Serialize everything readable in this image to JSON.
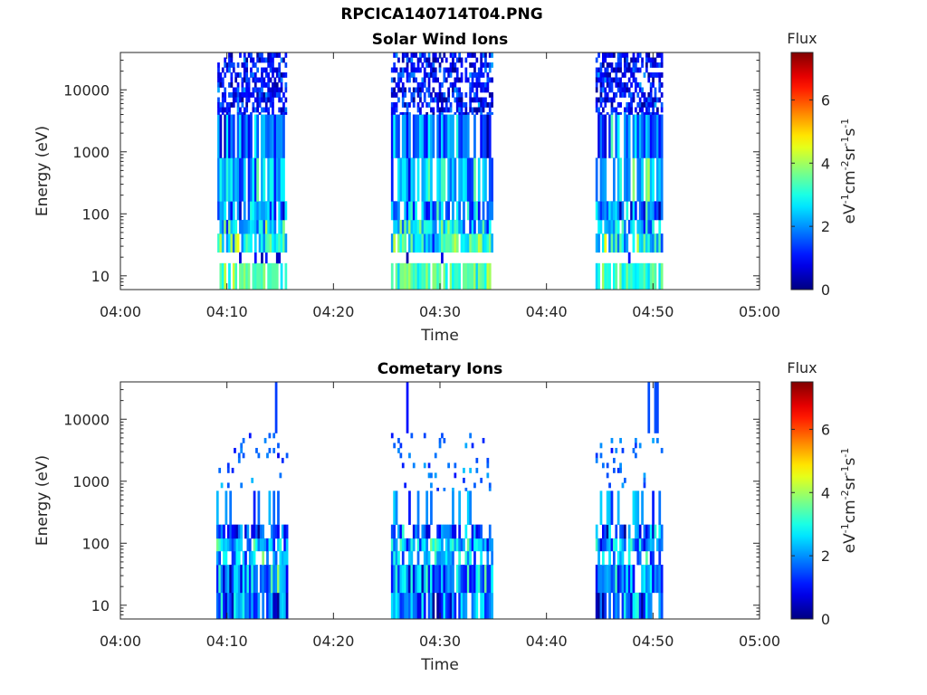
{
  "figure_title": "RPCICA140714T04.PNG",
  "colors": {
    "colormap": "jet",
    "axis": "#262626",
    "background": "#ffffff"
  },
  "chart_data": [
    {
      "type": "heatmap",
      "title": "Solar Wind Ions",
      "xlabel": "Time",
      "ylabel": "Energy (eV)",
      "xticks": [
        "04:00",
        "04:10",
        "04:20",
        "04:30",
        "04:40",
        "04:50",
        "05:00"
      ],
      "xlim_minutes": [
        0,
        60
      ],
      "yticks": [
        "10",
        "100",
        "1000",
        "10000"
      ],
      "ylim_ev": [
        6,
        40000
      ],
      "yscale": "log",
      "colorbar": {
        "title": "Flux",
        "label": "eV-1cm-2sr-1s-1",
        "label_parts": [
          [
            "eV",
            ""
          ],
          [
            "-1",
            "sup"
          ],
          [
            "cm",
            ""
          ],
          [
            "-2",
            "sup"
          ],
          [
            "sr",
            ""
          ],
          [
            "-1",
            "sup"
          ],
          [
            "s",
            ""
          ],
          [
            "-1",
            "sup"
          ]
        ],
        "ticks": [
          "0",
          "2",
          "4",
          "6"
        ],
        "range": [
          0,
          7.5
        ]
      },
      "segments": [
        {
          "start_min": 9.1,
          "end_min": 15.5
        },
        {
          "start_min": 25.4,
          "end_min": 34.9
        },
        {
          "start_min": 44.6,
          "end_min": 50.8
        }
      ],
      "bands": [
        {
          "emin_ev": 6,
          "emax_ev": 16,
          "mean_flux": 3.3,
          "spread": 0.6,
          "fill": 0.8
        },
        {
          "emin_ev": 16,
          "emax_ev": 24,
          "mean_flux": 0.8,
          "spread": 0.5,
          "fill": 0.05
        },
        {
          "emin_ev": 24,
          "emax_ev": 48,
          "mean_flux": 2.8,
          "spread": 1.2,
          "fill": 0.88
        },
        {
          "emin_ev": 48,
          "emax_ev": 80,
          "mean_flux": 2.6,
          "spread": 1.1,
          "fill": 0.85
        },
        {
          "emin_ev": 80,
          "emax_ev": 160,
          "mean_flux": 2.0,
          "spread": 1.1,
          "fill": 0.84
        },
        {
          "emin_ev": 160,
          "emax_ev": 800,
          "mean_flux": 2.3,
          "spread": 1.0,
          "fill": 0.8
        },
        {
          "emin_ev": 800,
          "emax_ev": 4000,
          "mean_flux": 1.7,
          "spread": 0.9,
          "fill": 0.76
        },
        {
          "emin_ev": 4000,
          "emax_ev": 40000,
          "mean_flux": 1.0,
          "spread": 0.7,
          "fill": 0.6
        }
      ]
    },
    {
      "type": "heatmap",
      "title": "Cometary Ions",
      "xlabel": "Time",
      "ylabel": "Energy (eV)",
      "xticks": [
        "04:00",
        "04:10",
        "04:20",
        "04:30",
        "04:40",
        "04:50",
        "05:00"
      ],
      "xlim_minutes": [
        0,
        60
      ],
      "yticks": [
        "10",
        "100",
        "1000",
        "10000"
      ],
      "ylim_ev": [
        6,
        40000
      ],
      "yscale": "log",
      "colorbar": {
        "title": "Flux",
        "label": "eV-1cm-2sr-1s-1",
        "label_parts": [
          [
            "eV",
            ""
          ],
          [
            "-1",
            "sup"
          ],
          [
            "cm",
            ""
          ],
          [
            "-2",
            "sup"
          ],
          [
            "sr",
            ""
          ],
          [
            "-1",
            "sup"
          ],
          [
            "s",
            ""
          ],
          [
            "-1",
            "sup"
          ]
        ],
        "ticks": [
          "0",
          "2",
          "4",
          "6"
        ],
        "range": [
          0,
          7.5
        ]
      },
      "segments": [
        {
          "start_min": 9.0,
          "end_min": 15.6
        },
        {
          "start_min": 25.4,
          "end_min": 34.9
        },
        {
          "start_min": 44.6,
          "end_min": 50.8
        }
      ],
      "bands": [
        {
          "emin_ev": 6,
          "emax_ev": 16,
          "mean_flux": 1.6,
          "spread": 1.2,
          "fill": 0.85
        },
        {
          "emin_ev": 16,
          "emax_ev": 45,
          "mean_flux": 1.9,
          "spread": 1.2,
          "fill": 0.92
        },
        {
          "emin_ev": 45,
          "emax_ev": 75,
          "mean_flux": 2.4,
          "spread": 0.9,
          "fill": 0.55
        },
        {
          "emin_ev": 75,
          "emax_ev": 120,
          "mean_flux": 2.3,
          "spread": 1.0,
          "fill": 0.88
        },
        {
          "emin_ev": 120,
          "emax_ev": 200,
          "mean_flux": 1.5,
          "spread": 1.1,
          "fill": 0.7
        },
        {
          "emin_ev": 200,
          "emax_ev": 700,
          "mean_flux": 2.0,
          "spread": 0.6,
          "fill": 0.22
        },
        {
          "emin_ev": 700,
          "emax_ev": 6000,
          "mean_flux": 1.6,
          "spread": 0.5,
          "fill": 0.09
        },
        {
          "emin_ev": 6000,
          "emax_ev": 40000,
          "mean_flux": 1.4,
          "spread": 0.5,
          "fill": 0.05
        }
      ]
    }
  ]
}
